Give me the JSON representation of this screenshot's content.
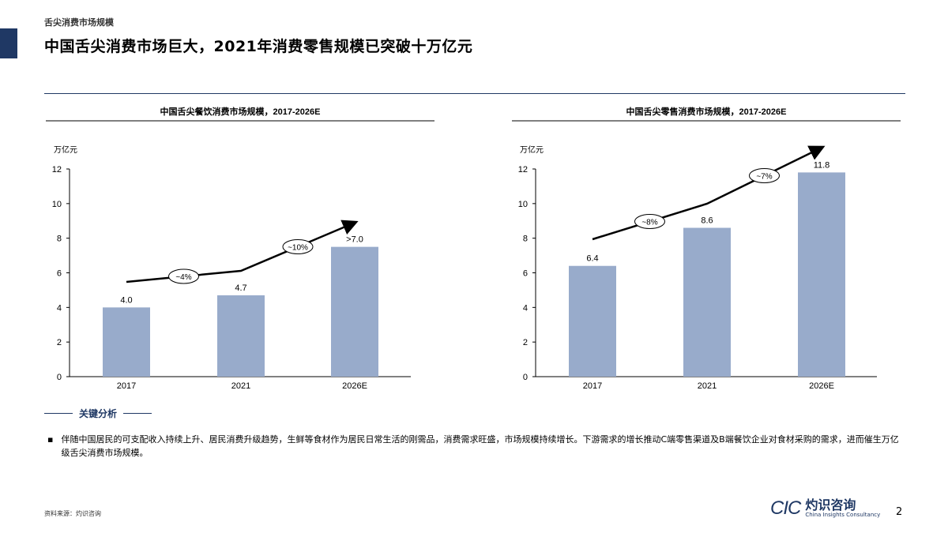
{
  "header": {
    "section": "舌尖消费市场规模",
    "title": "中国舌尖消费市场巨大，2021年消费零售规模已突破十万亿元"
  },
  "chart_data": [
    {
      "type": "bar",
      "title": "中国舌尖餐饮消费市场规模，2017-2026E",
      "ylabel": "万亿元",
      "ylim": [
        0,
        12
      ],
      "yticks": [
        0,
        2,
        4,
        6,
        8,
        10,
        12
      ],
      "categories": [
        "2017",
        "2021",
        "2026E"
      ],
      "values": [
        4.0,
        4.7,
        7.5
      ],
      "data_labels": [
        "4.0",
        "4.7",
        ">7.0"
      ],
      "cagr": [
        {
          "label": "~4%",
          "from": "2017",
          "to": "2021"
        },
        {
          "label": "~10%",
          "from": "2021",
          "to": "2026E"
        }
      ],
      "color": "#98abcb"
    },
    {
      "type": "bar",
      "title": "中国舌尖零售消费市场规模，2017-2026E",
      "ylabel": "万亿元",
      "ylim": [
        0,
        12
      ],
      "yticks": [
        0,
        2,
        4,
        6,
        8,
        10,
        12
      ],
      "categories": [
        "2017",
        "2021",
        "2026E"
      ],
      "values": [
        6.4,
        8.6,
        11.8
      ],
      "data_labels": [
        "6.4",
        "8.6",
        "11.8"
      ],
      "cagr": [
        {
          "label": "~8%",
          "from": "2017",
          "to": "2021"
        },
        {
          "label": "~7%",
          "from": "2021",
          "to": "2026E"
        }
      ],
      "color": "#98abcb"
    }
  ],
  "analysis": {
    "heading": "关键分析",
    "bullet": "伴随中国居民的可支配收入持续上升、居民消费升级趋势，生鲜等食材作为居民日常生活的刚需品，消费需求旺盛，市场规模持续增长。下游需求的增长推动C端零售渠道及B端餐饮企业对食材采购的需求，进而催生万亿级舌尖消费市场规模。"
  },
  "footer": {
    "source": "资料来源：灼识咨询",
    "logo_mark": "CIC",
    "logo_cn": "灼识咨询",
    "logo_en": "China Insights Consultancy",
    "page": "2"
  }
}
